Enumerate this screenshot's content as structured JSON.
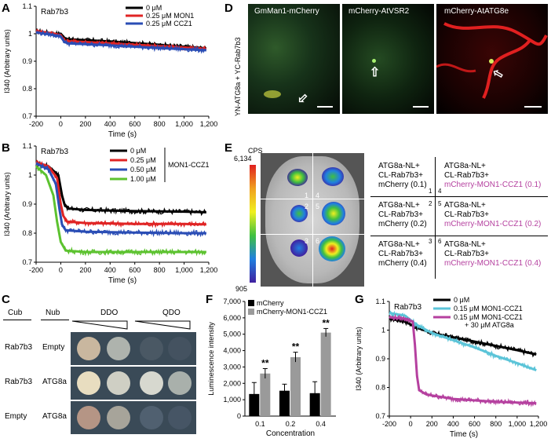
{
  "panels": {
    "a": {
      "letter": "A"
    },
    "b": {
      "letter": "B"
    },
    "c": {
      "letter": "C"
    },
    "d": {
      "letter": "D"
    },
    "e": {
      "letter": "E"
    },
    "f": {
      "letter": "F"
    },
    "g": {
      "letter": "G"
    }
  },
  "chart_data": [
    {
      "id": "A",
      "type": "line",
      "annotation": "Rab7b3",
      "xlabel": "Time (s)",
      "ylabel": "I340 (Arbitrary units)",
      "xlim": [
        -200,
        1200
      ],
      "ylim": [
        0.7,
        1.1
      ],
      "xticks": [
        "-200",
        "0",
        "200",
        "400",
        "600",
        "800",
        "1,000",
        "1,200"
      ],
      "yticks": [
        "0.7",
        "0.8",
        "0.9",
        "1",
        "1.1"
      ],
      "legend_position": "top-right",
      "series": [
        {
          "name": "0 μM",
          "color": "#000000",
          "x": [
            -200,
            -50,
            0,
            30,
            60,
            200,
            400,
            600,
            800,
            1000,
            1180
          ],
          "y": [
            1.01,
            1.0,
            1.0,
            0.985,
            0.98,
            0.977,
            0.972,
            0.966,
            0.96,
            0.953,
            0.947
          ]
        },
        {
          "name": "0.25 μM MON1",
          "color": "#e02424",
          "x": [
            -200,
            -50,
            0,
            30,
            60,
            200,
            400,
            600,
            800,
            1000,
            1180
          ],
          "y": [
            1.01,
            1.0,
            0.995,
            0.975,
            0.973,
            0.97,
            0.965,
            0.96,
            0.955,
            0.95,
            0.945
          ]
        },
        {
          "name": "0.25 μM CCZ1",
          "color": "#2a4db5",
          "x": [
            -200,
            -50,
            0,
            30,
            60,
            200,
            400,
            600,
            800,
            1000,
            1180
          ],
          "y": [
            1.005,
            0.995,
            0.99,
            0.97,
            0.965,
            0.962,
            0.958,
            0.953,
            0.948,
            0.944,
            0.94
          ]
        }
      ]
    },
    {
      "id": "B",
      "type": "line",
      "annotation": "Rab7b3",
      "legend_group_label": "MON1-CCZ1",
      "xlabel": "Time (s)",
      "ylabel": "I340 (Arbitrary units)",
      "xlim": [
        -200,
        1200
      ],
      "ylim": [
        0.7,
        1.1
      ],
      "xticks": [
        "-200",
        "0",
        "200",
        "400",
        "600",
        "800",
        "1,000",
        "1,200"
      ],
      "yticks": [
        "0.7",
        "0.8",
        "0.9",
        "1",
        "1.1"
      ],
      "legend_position": "top-right",
      "series": [
        {
          "name": "0 μM",
          "color": "#000000",
          "x": [
            -200,
            -100,
            -20,
            10,
            30,
            60,
            200,
            600,
            1000,
            1180
          ],
          "y": [
            1.04,
            1.03,
            1.0,
            0.93,
            0.9,
            0.885,
            0.88,
            0.876,
            0.874,
            0.872
          ]
        },
        {
          "name": "0.25 μM",
          "color": "#e02424",
          "x": [
            -200,
            -100,
            -30,
            0,
            20,
            50,
            200,
            600,
            1000,
            1180
          ],
          "y": [
            1.045,
            1.03,
            0.99,
            0.9,
            0.86,
            0.84,
            0.835,
            0.832,
            0.832,
            0.83
          ]
        },
        {
          "name": "0.50 μM",
          "color": "#2a4db5",
          "x": [
            -200,
            -100,
            -40,
            -10,
            10,
            40,
            200,
            600,
            1000,
            1180
          ],
          "y": [
            1.04,
            1.02,
            0.97,
            0.88,
            0.83,
            0.81,
            0.805,
            0.802,
            0.8,
            0.8
          ]
        },
        {
          "name": "1.00 μM",
          "color": "#5cc22f",
          "x": [
            -200,
            -120,
            -60,
            -30,
            0,
            40,
            200,
            600,
            1000,
            1180
          ],
          "y": [
            1.03,
            1.0,
            0.93,
            0.84,
            0.77,
            0.74,
            0.735,
            0.735,
            0.735,
            0.735
          ]
        }
      ]
    },
    {
      "id": "F",
      "type": "bar",
      "xlabel": "Concentration",
      "ylabel": "Luminescence intensity",
      "categories": [
        "0.1",
        "0.2",
        "0.4"
      ],
      "ylim": [
        0,
        7000
      ],
      "yticks": [
        "0",
        "1,000",
        "2,000",
        "3,000",
        "4,000",
        "5,000",
        "6,000",
        "7,000"
      ],
      "legend_position": "top-left",
      "significance": [
        "**",
        "**",
        "**"
      ],
      "series": [
        {
          "name": "mCherry",
          "color": "#000000",
          "values": [
            1350,
            1550,
            1400
          ],
          "errors": [
            700,
            400,
            700
          ]
        },
        {
          "name": "mCherry-MON1-CCZ1",
          "color": "#9a9a9a",
          "values": [
            2600,
            3600,
            5100
          ],
          "errors": [
            300,
            300,
            250
          ]
        }
      ]
    },
    {
      "id": "G",
      "type": "line",
      "annotation": "Rab7b3",
      "xlabel": "Time (s)",
      "ylabel": "I340 (Arbitrary units)",
      "xlim": [
        -200,
        1200
      ],
      "ylim": [
        0.7,
        1.1
      ],
      "xticks": [
        "-200",
        "0",
        "200",
        "400",
        "600",
        "800",
        "1,000",
        "1,200"
      ],
      "yticks": [
        "0.7",
        "0.8",
        "0.9",
        "1",
        "1.1"
      ],
      "legend_position": "top-right",
      "series": [
        {
          "name": "0 μM",
          "color": "#000000",
          "x": [
            -200,
            -50,
            50,
            200,
            400,
            600,
            800,
            1000,
            1180
          ],
          "y": [
            1.04,
            1.03,
            1.01,
            0.99,
            0.975,
            0.96,
            0.945,
            0.93,
            0.915
          ]
        },
        {
          "name": "0.15 μM MON1-CCZ1",
          "color": "#5bc4d8",
          "x": [
            -200,
            -50,
            50,
            200,
            400,
            600,
            800,
            1000,
            1180
          ],
          "y": [
            1.06,
            1.05,
            1.02,
            0.99,
            0.965,
            0.94,
            0.91,
            0.885,
            0.86
          ]
        },
        {
          "name": "0.15 μM MON1-CCZ1 + 30 μM ATG8a",
          "color": "#b5409f",
          "x": [
            -200,
            -50,
            20,
            40,
            60,
            80,
            150,
            400,
            800,
            1180
          ],
          "y": [
            1.045,
            1.04,
            1.03,
            0.95,
            0.84,
            0.79,
            0.775,
            0.76,
            0.75,
            0.745
          ]
        }
      ]
    }
  ],
  "panel_c": {
    "col_cub": "Cub",
    "col_nub": "Nub",
    "col_ddo": "DDO",
    "col_qdo": "QDO",
    "rows": [
      {
        "cub": "Rab7b3",
        "nub": "Empty"
      },
      {
        "cub": "Rab7b3",
        "nub": "ATG8a"
      },
      {
        "cub": "Empty",
        "nub": "ATG8a"
      }
    ]
  },
  "panel_d": {
    "side_label": "YN-ATG8a + YC-Rab7b3",
    "images": [
      {
        "title": "GmMan1-mCherry"
      },
      {
        "title": "mCherry-AtVSR2"
      },
      {
        "title": "mCherry-AtATG8e"
      }
    ]
  },
  "panel_e": {
    "cps_label": "CPS",
    "scale_max": "6,134",
    "scale_min": "905",
    "spot_numbers": [
      "1",
      "2",
      "3",
      "4",
      "5",
      "6"
    ],
    "table": [
      {
        "num": "1",
        "lines": [
          "ATG8a-NL+",
          "CL-Rab7b3+",
          "mCherry (0.1)"
        ]
      },
      {
        "num": "2",
        "lines": [
          "ATG8a-NL+",
          "CL-Rab7b3+",
          "mCherry (0.2)"
        ]
      },
      {
        "num": "3",
        "lines": [
          "ATG8a-NL+",
          "CL-Rab7b3+",
          "mCherry (0.4)"
        ]
      },
      {
        "num": "4",
        "lines": [
          "ATG8a-NL+",
          "CL-Rab7b3+",
          "mCherry-MON1-CCZ1 (0.1)"
        ]
      },
      {
        "num": "5",
        "lines": [
          "ATG8a-NL+",
          "CL-Rab7b3+",
          "mCherry-MON1-CCZ1 (0.2)"
        ]
      },
      {
        "num": "6",
        "lines": [
          "ATG8a-NL+",
          "CL-Rab7b3+",
          "mCherry-MON1-CCZ1 (0.4)"
        ]
      }
    ]
  }
}
